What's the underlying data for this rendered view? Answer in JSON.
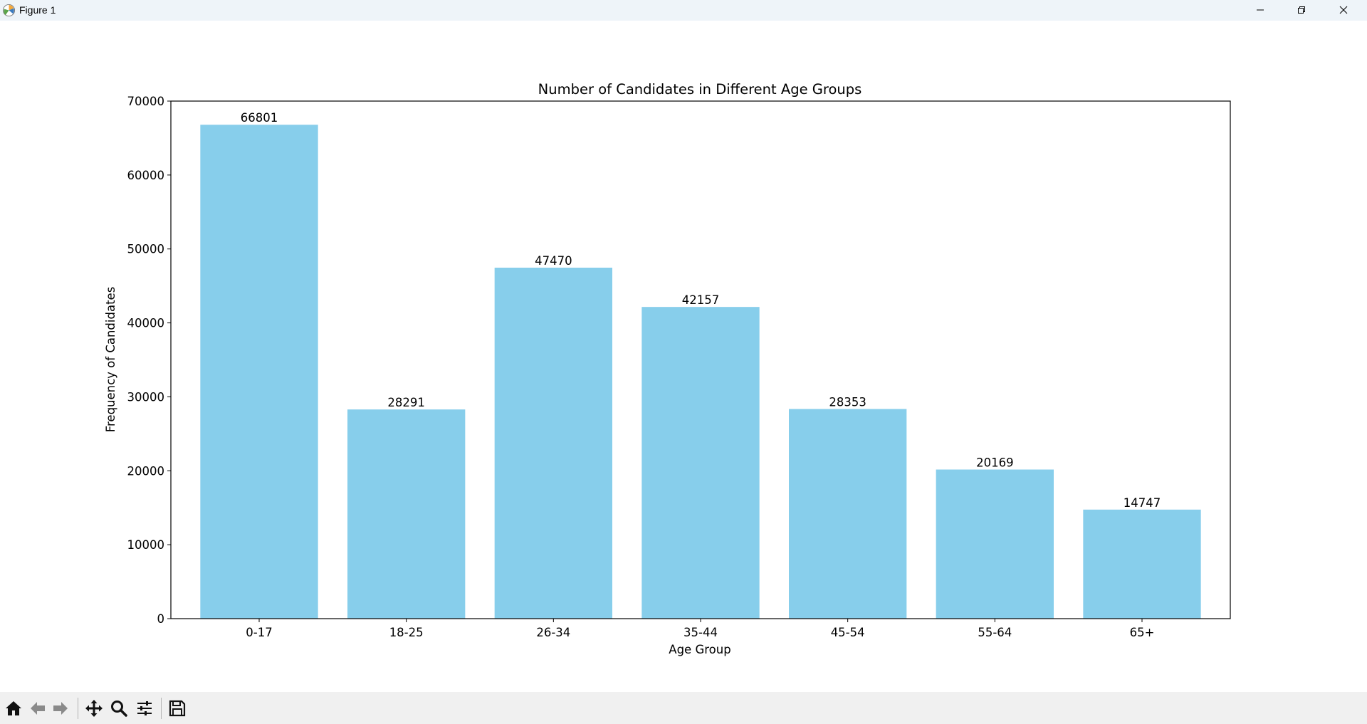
{
  "window": {
    "title": "Figure 1",
    "controls": [
      "minimize",
      "restore",
      "close"
    ]
  },
  "toolbar": {
    "buttons": [
      {
        "name": "home",
        "icon": "home-icon"
      },
      {
        "name": "back",
        "icon": "arrow-left-icon"
      },
      {
        "name": "forward",
        "icon": "arrow-right-icon"
      },
      {
        "name": "pan",
        "icon": "move-icon"
      },
      {
        "name": "zoom",
        "icon": "magnifier-icon"
      },
      {
        "name": "configure-subplots",
        "icon": "sliders-icon"
      },
      {
        "name": "save",
        "icon": "floppy-disk-icon"
      }
    ]
  },
  "chart_data": {
    "type": "bar",
    "title": "Number of Candidates in Different Age Groups",
    "xlabel": "Age Group",
    "ylabel": "Frequency of Candidates",
    "categories": [
      "0-17",
      "18-25",
      "26-34",
      "35-44",
      "45-54",
      "55-64",
      "65+"
    ],
    "values": [
      66801,
      28291,
      47470,
      42157,
      28353,
      20169,
      14747
    ],
    "data_labels": [
      "66801",
      "28291",
      "47470",
      "42157",
      "28353",
      "20169",
      "14747"
    ],
    "ylim": [
      0,
      70000
    ],
    "yticks": [
      0,
      10000,
      20000,
      30000,
      40000,
      50000,
      60000,
      70000
    ],
    "ytick_labels": [
      "0",
      "10000",
      "20000",
      "30000",
      "40000",
      "50000",
      "60000",
      "70000"
    ],
    "bar_color": "#87ceeb",
    "grid": false,
    "legend": "none"
  }
}
